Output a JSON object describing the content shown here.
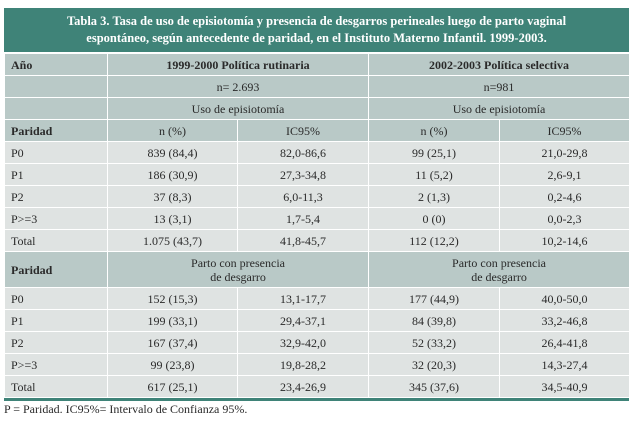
{
  "title_lines": [
    "Tabla 3. Tasa de uso de episiotomía y presencia de desgarros perineales luego de parto vaginal",
    "espontáneo, según antecedente de paridad, en el Instituto Materno Infantil. 1999-2003."
  ],
  "header": {
    "year_label": "Año",
    "period_1": "1999-2000 Política rutinaria",
    "period_2": "2002-2003 Política selectiva",
    "n_1": "n= 2.693",
    "n_2": "n=981",
    "section_1_1": "Uso de episiotomía",
    "section_1_2": "Uso de episiotomía",
    "parity_label": "Paridad",
    "col_n_1": "n (%)",
    "col_ic_1": "IC95%",
    "col_n_2": "n (%)",
    "col_ic_2": "IC95%"
  },
  "episiotomy_rows": [
    {
      "parity": "P0",
      "n1": "839 (84,4)",
      "ic1": "82,0-86,6",
      "n2": "99 (25,1)",
      "ic2": "21,0-29,8"
    },
    {
      "parity": "P1",
      "n1": "186 (30,9)",
      "ic1": "27,3-34,8",
      "n2": "11 (5,2)",
      "ic2": "2,6-9,1"
    },
    {
      "parity": "P2",
      "n1": "37 (8,3)",
      "ic1": "6,0-11,3",
      "n2": "2 (1,3)",
      "ic2": "0,2-4,6"
    },
    {
      "parity": "P>=3",
      "n1": "13 (3,1)",
      "ic1": "1,7-5,4",
      "n2": "0 (0)",
      "ic2": "0,0-2,3"
    },
    {
      "parity": "Total",
      "n1": "1.075 (43,7)",
      "ic1": "41,8-45,7",
      "n2": "112 (12,2)",
      "ic2": "10,2-14,6"
    }
  ],
  "tear_header": {
    "parity_label": "Paridad",
    "section_2_1_line1": "Parto con presencia",
    "section_2_1_line2": "de desgarro",
    "section_2_2_line1": "Parto con presencia",
    "section_2_2_line2": "de desgarro"
  },
  "tear_rows": [
    {
      "parity": "P0",
      "n1": "152 (15,3)",
      "ic1": "13,1-17,7",
      "n2": "177 (44,9)",
      "ic2": "40,0-50,0"
    },
    {
      "parity": "P1",
      "n1": "199 (33,1)",
      "ic1": "29,4-37,1",
      "n2": "84 (39,8)",
      "ic2": "33,2-46,8"
    },
    {
      "parity": "P2",
      "n1": "167 (37,4)",
      "ic1": "32,9-42,0",
      "n2": "52 (33,2)",
      "ic2": "26,4-41,8"
    },
    {
      "parity": "P>=3",
      "n1": "99 (23,8)",
      "ic1": "19,8-28,2",
      "n2": "32 (20,3)",
      "ic2": "14,3-27,4"
    },
    {
      "parity": "Total",
      "n1": "617 (25,1)",
      "ic1": "23,4-26,9",
      "n2": "345 (37,6)",
      "ic2": "34,5-40,9"
    }
  ],
  "footnote": "P = Paridad. IC95%= Intervalo de Confianza 95%.",
  "colors": {
    "title_bg": "#3f8378",
    "header_bg": "#b9c9c7",
    "row_bg": "#dfe3e2"
  }
}
